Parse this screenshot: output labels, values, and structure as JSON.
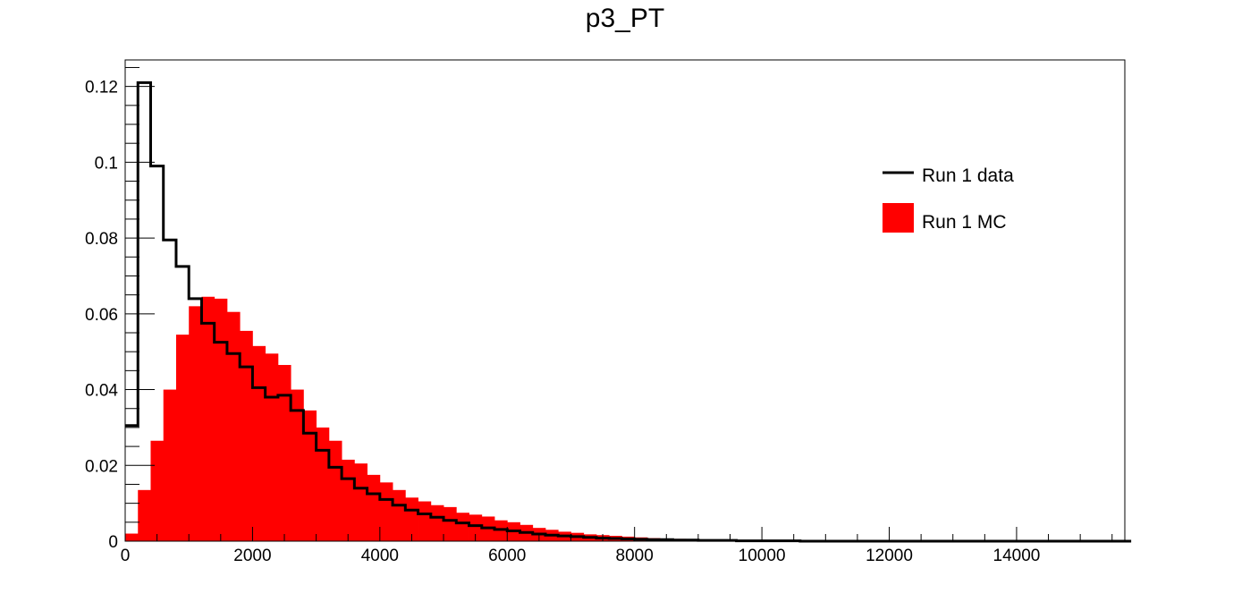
{
  "chart_data": {
    "type": "bar",
    "title": "p3_PT",
    "xlabel": "",
    "ylabel": "",
    "xlim": [
      0,
      15700
    ],
    "ylim": [
      0,
      0.127
    ],
    "bin_width": 200,
    "x_ticks": [
      0,
      2000,
      4000,
      6000,
      8000,
      10000,
      12000,
      14000
    ],
    "x_tick_labels": [
      "0",
      "2000",
      "4000",
      "6000",
      "8000",
      "10000",
      "12000",
      "14000"
    ],
    "y_ticks": [
      0,
      0.02,
      0.04,
      0.06,
      0.08,
      0.1,
      0.12
    ],
    "y_tick_labels": [
      "0",
      "0.02",
      "0.04",
      "0.06",
      "0.08",
      "0.1",
      "0.12"
    ],
    "grid": false,
    "legend_position": "top-right",
    "series": [
      {
        "name": "Run 1 MC",
        "style": "filled",
        "color": "#ff0000",
        "values": [
          0.002,
          0.0135,
          0.0265,
          0.04,
          0.0545,
          0.062,
          0.0645,
          0.064,
          0.0605,
          0.0555,
          0.0515,
          0.0495,
          0.0465,
          0.04,
          0.0345,
          0.03,
          0.0265,
          0.0215,
          0.0205,
          0.0175,
          0.0155,
          0.0135,
          0.0115,
          0.0105,
          0.0095,
          0.009,
          0.0075,
          0.007,
          0.0065,
          0.0055,
          0.005,
          0.0043,
          0.0035,
          0.003,
          0.0025,
          0.0022,
          0.0018,
          0.0016,
          0.0014,
          0.0012,
          0.001,
          0.0008,
          0.0007,
          0.0006,
          0.0005,
          0.0004,
          0.0003,
          0.0003,
          0.0002,
          0.0002,
          0.0001,
          0.0001,
          0.0001,
          0.0001,
          0.0,
          0.0,
          0.0,
          0.0,
          0.0,
          0.0,
          0.0,
          0.0,
          0.0,
          0.0,
          0.0,
          0.0,
          0.0,
          0.0,
          0.0,
          0.0,
          0.0,
          0.0,
          0.0,
          0.0,
          0.0,
          0.0,
          0.0,
          0.0,
          0.0
        ]
      },
      {
        "name": "Run 1 data",
        "style": "step",
        "color": "#000000",
        "values": [
          0.0305,
          0.121,
          0.099,
          0.0795,
          0.0725,
          0.064,
          0.0575,
          0.0525,
          0.0495,
          0.046,
          0.0405,
          0.038,
          0.0385,
          0.0345,
          0.0285,
          0.024,
          0.0195,
          0.0165,
          0.014,
          0.0125,
          0.011,
          0.0095,
          0.0082,
          0.0072,
          0.0063,
          0.0055,
          0.0048,
          0.0041,
          0.0035,
          0.0031,
          0.0027,
          0.0023,
          0.0019,
          0.0016,
          0.0014,
          0.0012,
          0.001,
          0.0008,
          0.0007,
          0.0006,
          0.0005,
          0.0004,
          0.0004,
          0.0003,
          0.0003,
          0.0002,
          0.0002,
          0.0002,
          0.0001,
          0.0001,
          0.0001,
          0.0001,
          0.0001,
          0.0,
          0.0,
          0.0,
          0.0,
          0.0,
          0.0,
          0.0,
          0.0,
          0.0,
          0.0,
          0.0,
          0.0,
          0.0,
          0.0,
          0.0,
          0.0,
          0.0,
          0.0,
          0.0,
          0.0,
          0.0,
          0.0,
          0.0,
          0.0,
          0.0,
          0.0
        ]
      }
    ]
  },
  "legend": [
    {
      "label": "Run 1 data",
      "swatch": "line",
      "color": "#000000"
    },
    {
      "label": "Run 1 MC",
      "swatch": "box",
      "color": "#ff0000"
    }
  ]
}
